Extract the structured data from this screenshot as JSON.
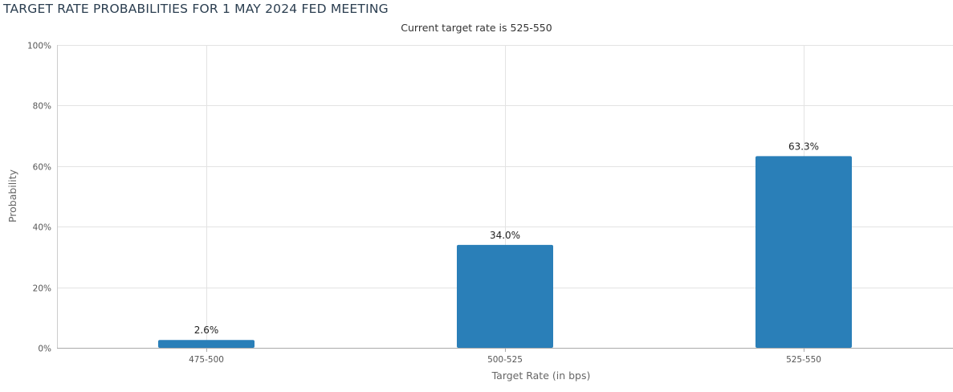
{
  "chart_data": {
    "type": "bar",
    "title": "TARGET RATE PROBABILITIES FOR 1 MAY 2024 FED MEETING",
    "subtitle": "Current target rate is 525-550",
    "xlabel": "Target Rate (in bps)",
    "ylabel": "Probability",
    "categories": [
      "475-500",
      "500-525",
      "525-550"
    ],
    "values": [
      2.6,
      34.0,
      63.3
    ],
    "data_labels": [
      "2.6%",
      "34.0%",
      "63.3%"
    ],
    "ylim": [
      0,
      100
    ],
    "yticks": [
      0,
      20,
      40,
      60,
      80,
      100
    ],
    "ytick_labels": [
      "0%",
      "20%",
      "40%",
      "60%",
      "80%",
      "100%"
    ],
    "grid": true,
    "bar_color": "#2a7fb8"
  }
}
